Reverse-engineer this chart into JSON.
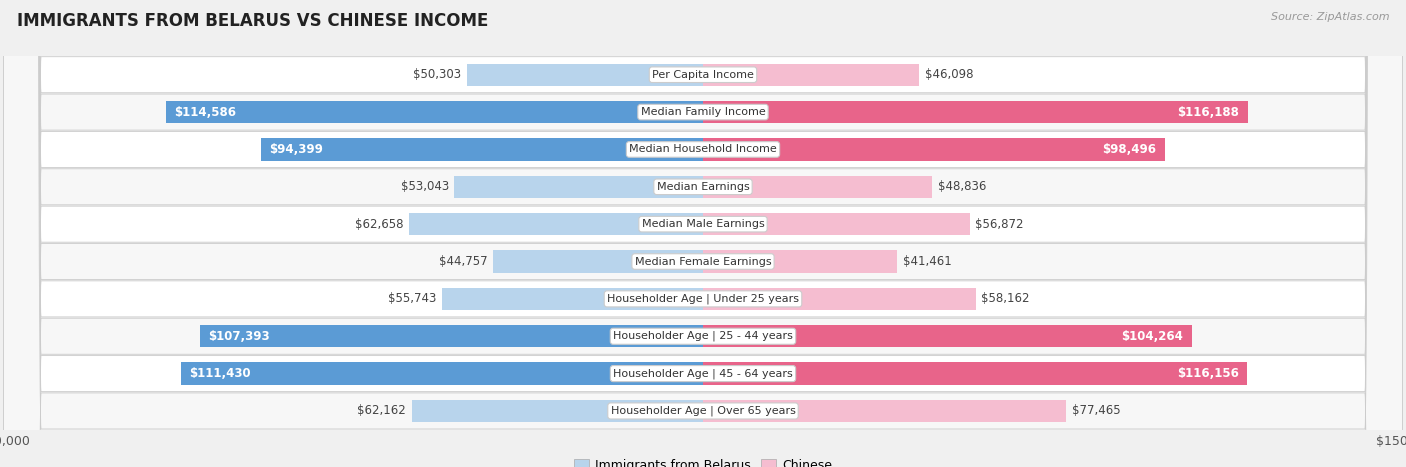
{
  "title": "IMMIGRANTS FROM BELARUS VS CHINESE INCOME",
  "source": "Source: ZipAtlas.com",
  "categories": [
    "Per Capita Income",
    "Median Family Income",
    "Median Household Income",
    "Median Earnings",
    "Median Male Earnings",
    "Median Female Earnings",
    "Householder Age | Under 25 years",
    "Householder Age | 25 - 44 years",
    "Householder Age | 45 - 64 years",
    "Householder Age | Over 65 years"
  ],
  "belarus_values": [
    50303,
    114586,
    94399,
    53043,
    62658,
    44757,
    55743,
    107393,
    111430,
    62162
  ],
  "chinese_values": [
    46098,
    116188,
    98496,
    48836,
    56872,
    41461,
    58162,
    104264,
    116156,
    77465
  ],
  "belarus_labels": [
    "$50,303",
    "$114,586",
    "$94,399",
    "$53,043",
    "$62,658",
    "$44,757",
    "$55,743",
    "$107,393",
    "$111,430",
    "$62,162"
  ],
  "chinese_labels": [
    "$46,098",
    "$116,188",
    "$98,496",
    "$48,836",
    "$56,872",
    "$41,461",
    "$58,162",
    "$104,264",
    "$116,156",
    "$77,465"
  ],
  "belarus_color_light": "#b8d4ec",
  "belarus_color_dark": "#5b9bd5",
  "chinese_color_light": "#f5bdd0",
  "chinese_color_dark": "#e8648a",
  "max_value": 150000,
  "legend_belarus": "Immigrants from Belarus",
  "legend_chinese": "Chinese",
  "background_color": "#f0f0f0",
  "row_bg_even": "#f7f7f7",
  "row_bg_odd": "#ffffff",
  "threshold_dark": 80000,
  "label_fontsize": 8.5,
  "cat_fontsize": 8.0
}
